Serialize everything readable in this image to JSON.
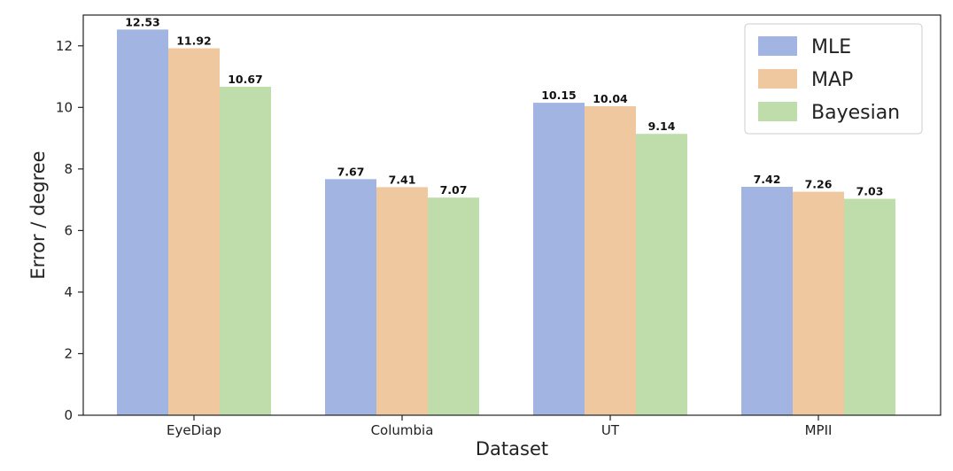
{
  "chart_data": {
    "type": "bar",
    "categories": [
      "EyeDiap",
      "Columbia",
      "UT",
      "MPII"
    ],
    "series": [
      {
        "name": "MLE",
        "color": "#a2b4e2",
        "values": [
          12.53,
          7.67,
          10.15,
          7.42
        ]
      },
      {
        "name": "MAP",
        "color": "#f0c8a0",
        "values": [
          11.92,
          7.41,
          10.04,
          7.26
        ]
      },
      {
        "name": "Bayesian",
        "color": "#bfddab",
        "values": [
          10.67,
          7.07,
          9.14,
          7.03
        ]
      }
    ],
    "data_labels": [
      [
        "12.53",
        "7.67",
        "10.15",
        "7.42"
      ],
      [
        "11.92",
        "7.41",
        "10.04",
        "7.26"
      ],
      [
        "10.67",
        "7.07",
        "9.14",
        "7.03"
      ]
    ],
    "xlabel": "Dataset",
    "ylabel": "Error / degree",
    "ylim": [
      0,
      13
    ],
    "yticks": [
      0,
      2,
      4,
      6,
      8,
      10,
      12
    ],
    "grid": false,
    "legend_position": "top-right"
  }
}
